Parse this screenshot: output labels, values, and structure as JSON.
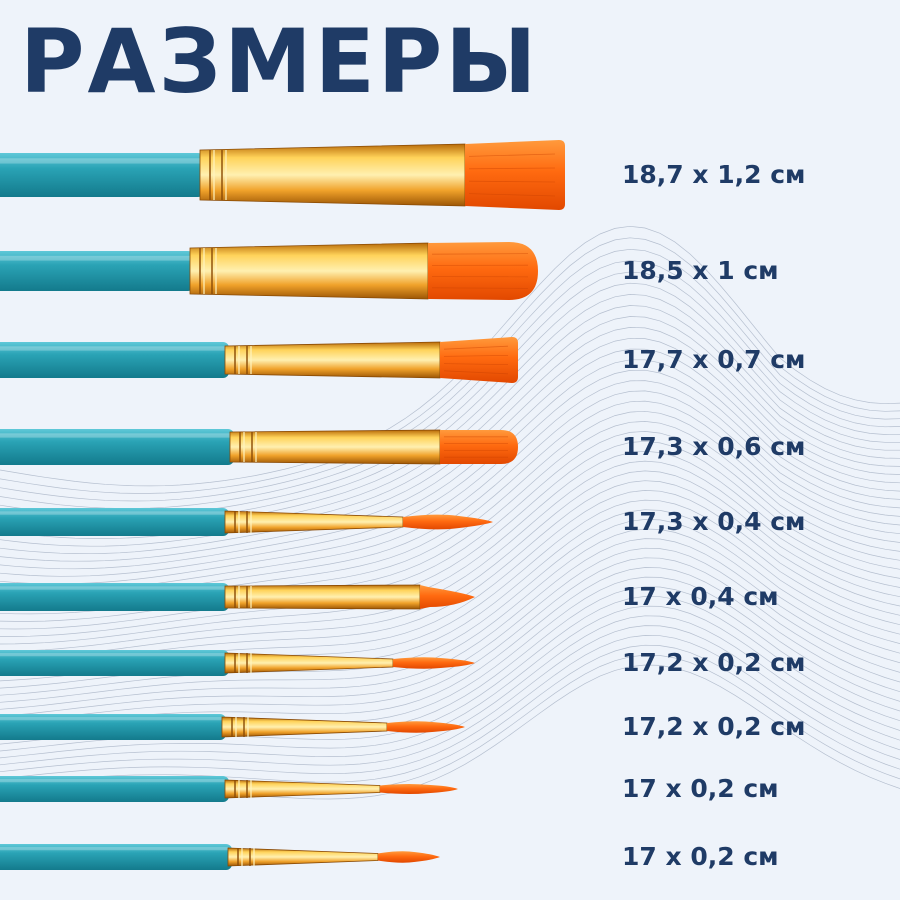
{
  "title": "РАЗМЕРЫ",
  "colors": {
    "background": "#eef3fa",
    "title": "#1f3b66",
    "handle": "#2aa3b5",
    "ferrule": "#f2b030",
    "bristles": "#ff6a10"
  },
  "brushes": [
    {
      "shape": "flat",
      "size": "18,7 x 1,2 см"
    },
    {
      "shape": "filbert",
      "size": "18,5 x 1 см"
    },
    {
      "shape": "flat",
      "size": "17,7 x 0,7 см"
    },
    {
      "shape": "filbert",
      "size": "17,3 x 0,6 см"
    },
    {
      "shape": "round",
      "size": "17,3 x 0,4 см"
    },
    {
      "shape": "angled",
      "size": "17 x 0,4 см"
    },
    {
      "shape": "round",
      "size": "17,2 x 0,2 см"
    },
    {
      "shape": "round",
      "size": "17,2 x 0,2 см"
    },
    {
      "shape": "round",
      "size": "17 x 0,2 см"
    },
    {
      "shape": "round",
      "size": "17 x 0,2 см"
    }
  ]
}
